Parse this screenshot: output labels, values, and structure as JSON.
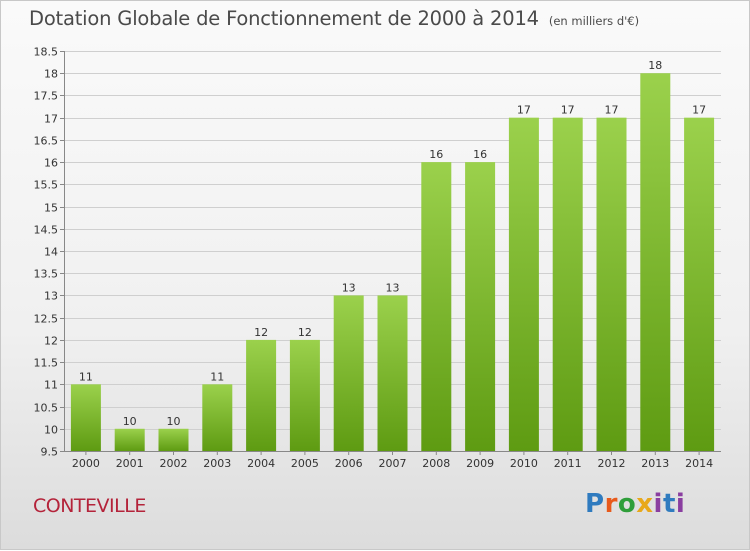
{
  "header": {
    "title": "Dotation Globale de Fonctionnement de 2000 à 2014",
    "subtitle": "(en milliers d'€)"
  },
  "footer": {
    "commune": "CONTEVILLE",
    "logo_text": "Proxiti"
  },
  "colors": {
    "bar_top": "#9bd14c",
    "bar_bottom": "#5e9b12",
    "title": "#4a4a4a",
    "commune": "#b4233a",
    "grid": "#cfcfcf"
  },
  "chart_data": {
    "type": "bar",
    "title": "Dotation Globale de Fonctionnement de 2000 à 2014",
    "subtitle": "(en milliers d'€)",
    "categories": [
      "2000",
      "2001",
      "2002",
      "2003",
      "2004",
      "2005",
      "2006",
      "2007",
      "2008",
      "2009",
      "2010",
      "2011",
      "2012",
      "2013",
      "2014"
    ],
    "values": [
      11,
      10,
      10,
      11,
      12,
      12,
      13,
      13,
      16,
      16,
      17,
      17,
      17,
      18,
      17
    ],
    "data_labels": [
      "11",
      "10",
      "10",
      "11",
      "12",
      "12",
      "13",
      "13",
      "16",
      "16",
      "17",
      "17",
      "17",
      "18",
      "17"
    ],
    "ylim": [
      9.5,
      18.5
    ],
    "yticks": [
      9.5,
      10,
      10.5,
      11,
      11.5,
      12,
      12.5,
      13,
      13.5,
      14,
      14.5,
      15,
      15.5,
      16,
      16.5,
      17,
      17.5,
      18,
      18.5
    ],
    "ytick_labels": [
      "9.5",
      "10",
      "10.5",
      "11",
      "11.5",
      "12",
      "12.5",
      "13",
      "13.5",
      "14",
      "14.5",
      "15",
      "15.5",
      "16",
      "16.5",
      "17",
      "17.5",
      "18",
      "18.5"
    ],
    "grid": true,
    "xlabel": "",
    "ylabel": ""
  }
}
